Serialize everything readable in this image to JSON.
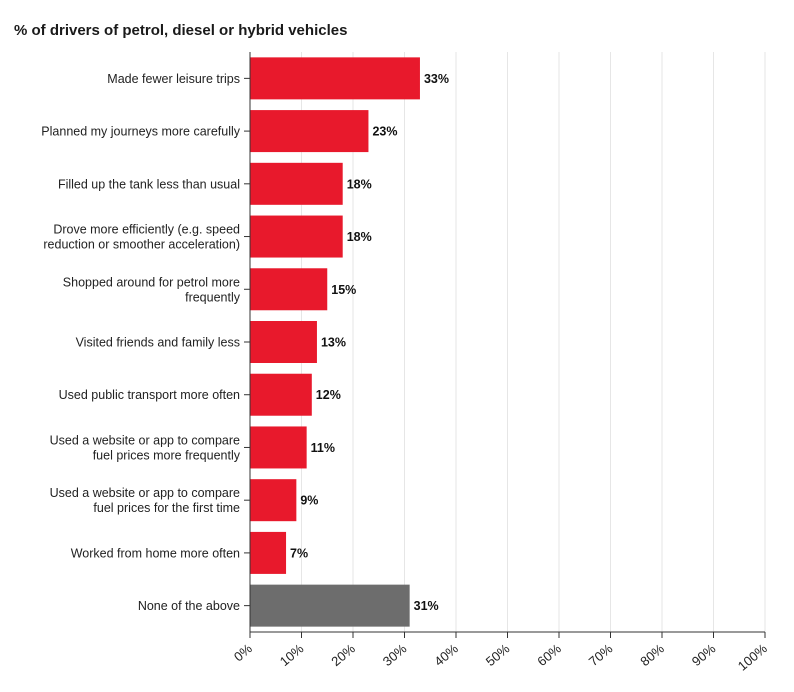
{
  "chart_data": {
    "type": "bar",
    "orientation": "horizontal",
    "title": "% of drivers of petrol, diesel or hybrid vehicles",
    "categories": [
      "Made fewer leisure trips",
      "Planned my journeys more carefully",
      "Filled up the tank less than usual",
      "Drove more efficiently (e.g. speed reduction or smoother acceleration)",
      "Shopped around for petrol more frequently",
      "Visited friends and family less",
      "Used public transport more often",
      "Used a website or app to compare fuel prices more frequently",
      "Used a website or app to compare fuel prices for the first time",
      "Worked from home more often",
      "None of the above"
    ],
    "category_lines": [
      [
        "Made fewer leisure trips"
      ],
      [
        "Planned my journeys more carefully"
      ],
      [
        "Filled up the tank less than usual"
      ],
      [
        "Drove more efficiently (e.g. speed",
        "reduction or smoother acceleration)"
      ],
      [
        "Shopped around for petrol more",
        "frequently"
      ],
      [
        "Visited friends and family less"
      ],
      [
        "Used public transport more often"
      ],
      [
        "Used a website or app to compare",
        "fuel prices more frequently"
      ],
      [
        "Used a website or app to compare",
        "fuel prices for the first time"
      ],
      [
        "Worked from home more often"
      ],
      [
        "None of the above"
      ]
    ],
    "values": [
      33,
      23,
      18,
      18,
      15,
      13,
      12,
      11,
      9,
      7,
      31
    ],
    "value_labels": [
      "33%",
      "23%",
      "18%",
      "18%",
      "15%",
      "13%",
      "12%",
      "11%",
      "9%",
      "7%",
      "31%"
    ],
    "xlim": [
      0,
      100
    ],
    "x_ticks": [
      0,
      10,
      20,
      30,
      40,
      50,
      60,
      70,
      80,
      90,
      100
    ],
    "x_tick_labels": [
      "0%",
      "10%",
      "20%",
      "30%",
      "40%",
      "50%",
      "60%",
      "70%",
      "80%",
      "90%",
      "100%"
    ],
    "xlabel": "",
    "ylabel": "",
    "grid": "vertical",
    "legend": "none",
    "colors": {
      "bar": "#e8192c",
      "bar_highlight_none": "#6d6d6d",
      "grid": "#e6e6e6",
      "axis": "#333333"
    }
  }
}
